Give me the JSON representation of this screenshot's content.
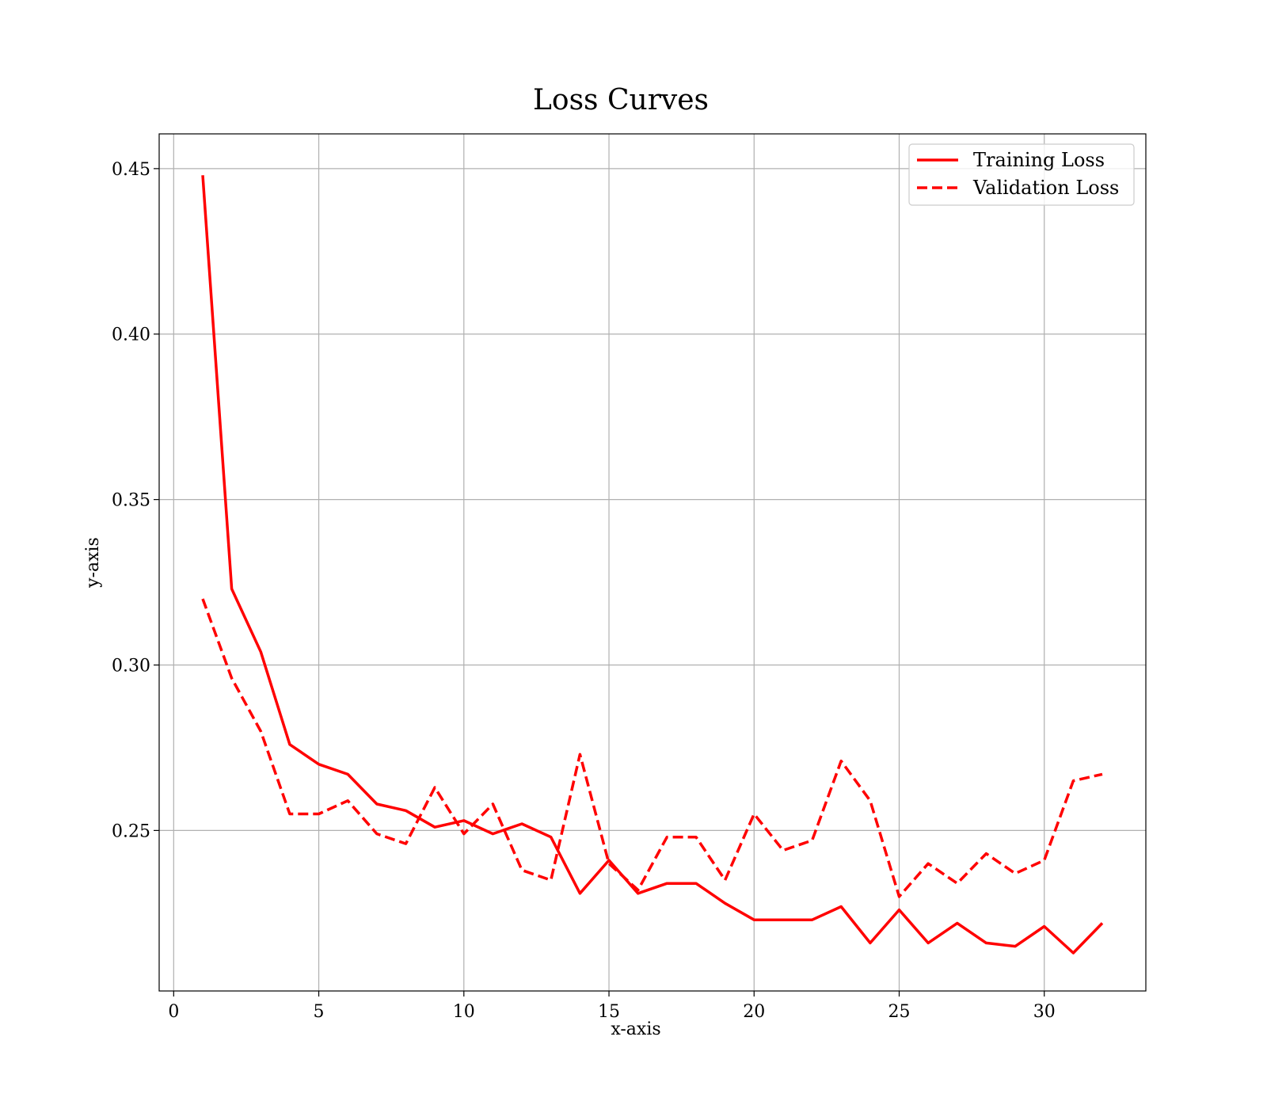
{
  "chart_data": {
    "type": "line",
    "title": "Loss Curves",
    "xlabel": "x-axis",
    "ylabel": "y-axis",
    "xlim": [
      -0.5,
      33.5
    ],
    "ylim": [
      0.2015,
      0.4605
    ],
    "xticks": [
      0,
      5,
      10,
      15,
      20,
      25,
      30
    ],
    "yticks": [
      0.25,
      0.3,
      0.35,
      0.4,
      0.45
    ],
    "ytick_labels": [
      "0.25",
      "0.30",
      "0.35",
      "0.40",
      "0.45"
    ],
    "grid": true,
    "legend_position": "top-right",
    "x": [
      1,
      2,
      3,
      4,
      5,
      6,
      7,
      8,
      9,
      10,
      11,
      12,
      13,
      14,
      15,
      16,
      17,
      18,
      19,
      20,
      21,
      22,
      23,
      24,
      25,
      26,
      27,
      28,
      29,
      30,
      31,
      32
    ],
    "series": [
      {
        "name": "Training Loss",
        "color": "#ff0000",
        "style": "solid",
        "values": [
          0.448,
          0.323,
          0.304,
          0.276,
          0.27,
          0.267,
          0.258,
          0.256,
          0.251,
          0.253,
          0.249,
          0.252,
          0.248,
          0.231,
          0.241,
          0.231,
          0.234,
          0.234,
          0.228,
          0.223,
          0.223,
          0.223,
          0.227,
          0.216,
          0.226,
          0.216,
          0.222,
          0.216,
          0.215,
          0.221,
          0.213,
          0.222
        ]
      },
      {
        "name": "Validation Loss",
        "color": "#ff0000",
        "style": "dashed",
        "values": [
          0.32,
          0.296,
          0.28,
          0.255,
          0.255,
          0.259,
          0.249,
          0.246,
          0.263,
          0.249,
          0.258,
          0.238,
          0.235,
          0.273,
          0.24,
          0.232,
          0.248,
          0.248,
          0.235,
          0.255,
          0.244,
          0.247,
          0.271,
          0.259,
          0.23,
          0.24,
          0.234,
          0.243,
          0.237,
          0.241,
          0.265,
          0.267
        ]
      }
    ]
  }
}
